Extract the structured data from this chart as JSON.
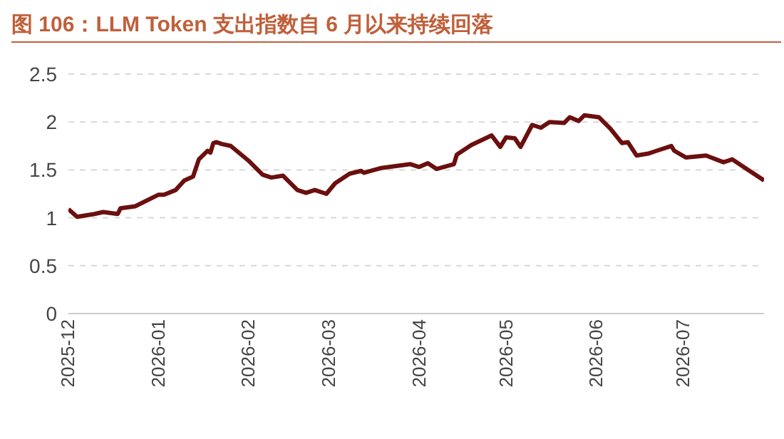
{
  "chart_data": {
    "type": "line",
    "title": "图 106：LLM Token 支出指数自 6 月以来持续回落",
    "x": [
      "2025-12-01",
      "2025-12-04",
      "2025-12-10",
      "2025-12-13",
      "2025-12-18",
      "2025-12-19",
      "2025-12-24",
      "2026-01-01",
      "2026-01-03",
      "2026-01-07",
      "2026-01-10",
      "2026-01-13",
      "2026-01-15",
      "2026-01-18",
      "2026-01-19",
      "2026-01-20",
      "2026-01-21",
      "2026-01-23",
      "2026-01-26",
      "2026-02-01",
      "2026-02-06",
      "2026-02-09",
      "2026-02-13",
      "2026-02-18",
      "2026-02-21",
      "2026-02-24",
      "2026-02-28",
      "2026-03-03",
      "2026-03-08",
      "2026-03-12",
      "2026-03-13",
      "2026-03-19",
      "2026-03-24",
      "2026-03-29",
      "2026-04-01",
      "2026-04-04",
      "2026-04-07",
      "2026-04-13",
      "2026-04-14",
      "2026-04-19",
      "2026-04-26",
      "2026-04-29",
      "2026-05-01",
      "2026-05-04",
      "2026-05-06",
      "2026-05-10",
      "2026-05-13",
      "2026-05-16",
      "2026-05-21",
      "2026-05-23",
      "2026-05-26",
      "2026-05-28",
      "2026-06-02",
      "2026-06-06",
      "2026-06-10",
      "2026-06-12",
      "2026-06-15",
      "2026-06-19",
      "2026-06-22",
      "2026-06-27",
      "2026-06-28",
      "2026-07-02",
      "2026-07-09",
      "2026-07-15",
      "2026-07-18",
      "2026-07-24",
      "2026-07-29"
    ],
    "series": [
      {
        "color": "#6b0f0f",
        "values": [
          1.09,
          1.01,
          1.04,
          1.06,
          1.04,
          1.1,
          1.12,
          1.24,
          1.24,
          1.29,
          1.39,
          1.43,
          1.61,
          1.7,
          1.68,
          1.78,
          1.79,
          1.77,
          1.75,
          1.6,
          1.45,
          1.42,
          1.44,
          1.29,
          1.26,
          1.29,
          1.25,
          1.36,
          1.46,
          1.49,
          1.47,
          1.52,
          1.54,
          1.56,
          1.53,
          1.57,
          1.51,
          1.56,
          1.66,
          1.76,
          1.86,
          1.74,
          1.84,
          1.83,
          1.74,
          1.97,
          1.94,
          2.0,
          1.99,
          2.05,
          2.01,
          2.07,
          2.05,
          1.93,
          1.78,
          1.79,
          1.65,
          1.67,
          1.7,
          1.75,
          1.7,
          1.63,
          1.65,
          1.58,
          1.61,
          1.49,
          1.39
        ]
      }
    ],
    "xlim": [
      "2025-12-01",
      "2026-07-29"
    ],
    "xticks": [
      {
        "value": "2025-12-01",
        "label": "2025-12"
      },
      {
        "value": "2026-01-01",
        "label": "2026-01"
      },
      {
        "value": "2026-02-01",
        "label": "2026-02"
      },
      {
        "value": "2026-03-01",
        "label": "2026-03"
      },
      {
        "value": "2026-04-01",
        "label": "2026-04"
      },
      {
        "value": "2026-05-01",
        "label": "2026-05"
      },
      {
        "value": "2026-06-01",
        "label": "2026-06"
      },
      {
        "value": "2026-07-01",
        "label": "2026-07"
      }
    ],
    "ylim": [
      0,
      2.5
    ],
    "yticks": [
      0,
      0.5,
      1,
      1.5,
      2,
      2.5
    ],
    "grid": "y",
    "legend": false,
    "marker": "none",
    "line_style": "solid"
  }
}
